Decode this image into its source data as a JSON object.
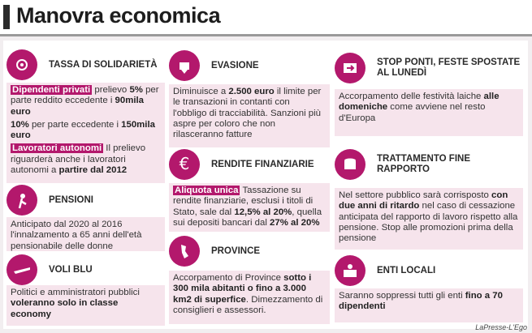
{
  "header": {
    "title": "Manovra economica"
  },
  "sections": [
    {
      "title": "TASSA DI SOLIDARIETÀ",
      "paragraphs": [
        [
          {
            "text": "Dipendenti privati",
            "style": "highlight"
          },
          {
            "text": " prelievo "
          },
          {
            "text": "5%",
            "style": "bold"
          },
          {
            "text": " per parte reddito eccedente i "
          },
          {
            "text": "90mila euro",
            "style": "bold"
          }
        ],
        [
          {
            "text": "10%",
            "style": "bold"
          },
          {
            "text": " per parte eccedente i "
          },
          {
            "text": "150mila euro",
            "style": "bold"
          }
        ],
        [
          {
            "text": "Lavoratori autonomi",
            "style": "highlight"
          },
          {
            "text": " Il prelievo riguarderà anche i lavoratori autonomi a "
          },
          {
            "text": "partire dal 2012",
            "style": "bold"
          }
        ]
      ]
    },
    {
      "title": "PENSIONI",
      "paragraphs": [
        [
          {
            "text": "Anticipato dal 2020 al 2016 l'innalzamento a 65 anni dell'età pensionabile delle donne"
          }
        ]
      ]
    },
    {
      "title": "VOLI BLU",
      "paragraphs": [
        [
          {
            "text": "Politici e amministratori pubblici "
          },
          {
            "text": "voleranno solo in classe economy",
            "style": "bold"
          }
        ]
      ]
    },
    {
      "title": "EVASIONE",
      "paragraphs": [
        [
          {
            "text": "Diminuisce a "
          },
          {
            "text": "2.500 euro",
            "style": "bold"
          },
          {
            "text": " il limite per le transazioni in contanti con l'obbligo di tracciabilità. Sanzioni più aspre per coloro che non rilasceranno fatture"
          }
        ]
      ]
    },
    {
      "title": "RENDITE FINANZIARIE",
      "paragraphs": [
        [
          {
            "text": "Aliquota unica",
            "style": "highlight"
          },
          {
            "text": " Tassazione su rendite finanziarie, esclusi i titoli di Stato, sale dal "
          },
          {
            "text": "12,5% al 20%",
            "style": "bold"
          },
          {
            "text": ", quella sui depositi bancari dal "
          },
          {
            "text": "27% al 20%",
            "style": "bold"
          }
        ]
      ]
    },
    {
      "title": "PROVINCE",
      "paragraphs": [
        [
          {
            "text": "Accorpamento di Province "
          },
          {
            "text": "sotto i 300 mila abitanti o fino a 3.000 km2 di superfice",
            "style": "bold"
          },
          {
            "text": ". Dimezzamento di consiglieri e assessori."
          }
        ]
      ]
    },
    {
      "title": "STOP PONTI, FESTE SPOSTATE AL LUNEDÌ",
      "paragraphs": [
        [
          {
            "text": "Accorpamento delle festività laiche "
          },
          {
            "text": "alle domeniche",
            "style": "bold"
          },
          {
            "text": " come avviene nel resto d'Europa"
          }
        ]
      ]
    },
    {
      "title": "TRATTAMENTO FINE RAPPORTO",
      "paragraphs": [
        [
          {
            "text": "Nel settore pubblico sarà corrisposto "
          },
          {
            "text": "con due anni di ritardo",
            "style": "bold"
          },
          {
            "text": " nel caso di cessazione anticipata del rapporto di lavoro rispetto alla pensione. Stop alle promozioni prima della pensione"
          }
        ]
      ]
    },
    {
      "title": "ENTI LOCALI",
      "paragraphs": [
        [
          {
            "text": "Saranno soppressi tutti gli enti "
          },
          {
            "text": "fino a 70 dipendenti",
            "style": "bold"
          }
        ]
      ]
    }
  ],
  "footer": {
    "credit": "LaPresse-L'Ego"
  }
}
